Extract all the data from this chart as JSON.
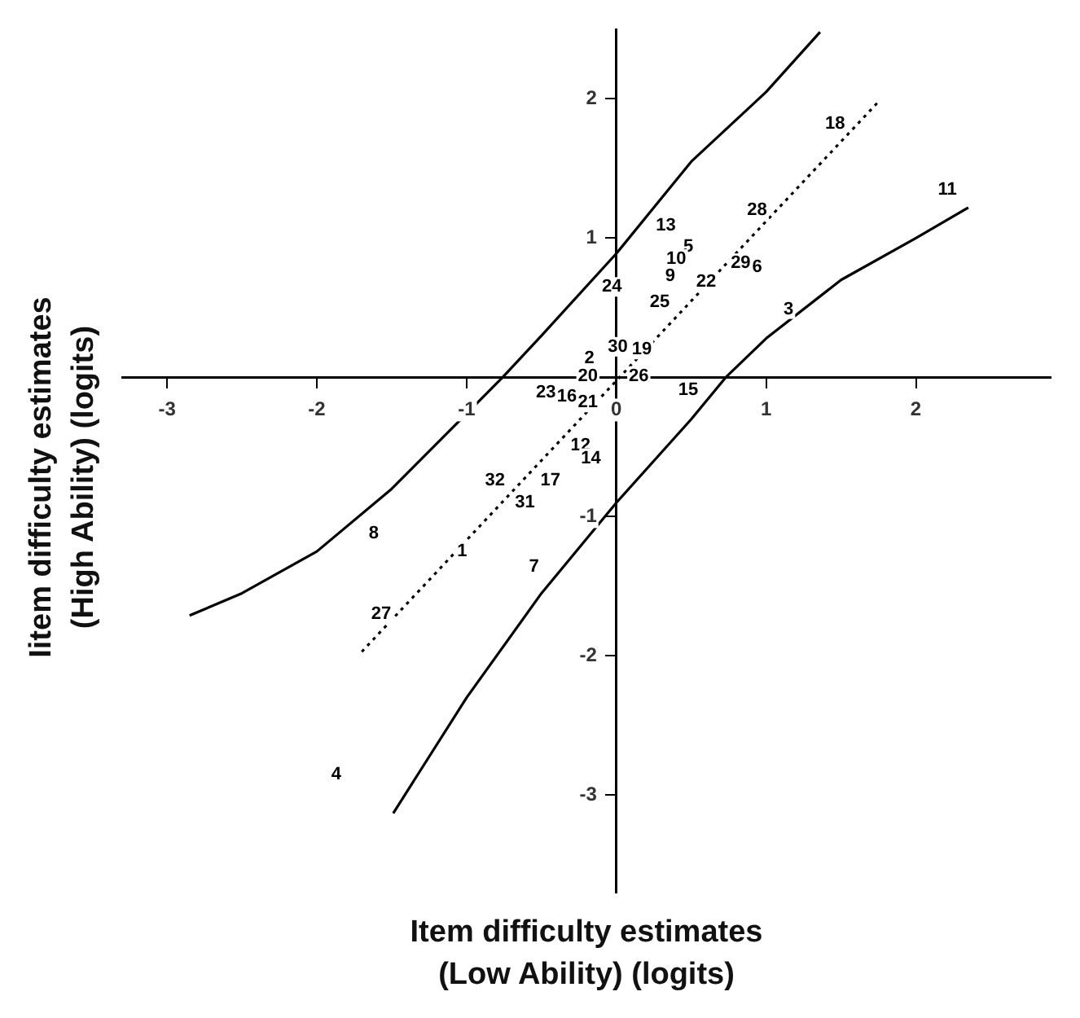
{
  "chart_data": {
    "type": "scatter",
    "xlabel": "Item difficulty estimates\n(Low Ability) (logits)",
    "ylabel": "Iitem difficulty estimates\n(High Ability) (logits)",
    "xlim": [
      -3.3,
      2.9
    ],
    "ylim": [
      -3.7,
      2.5
    ],
    "xticks": [
      -3,
      -2,
      -1,
      0,
      1,
      2
    ],
    "yticks": [
      -3,
      -2,
      -1,
      {
        "value": 0,
        "label": null
      },
      1,
      2
    ],
    "series": [
      {
        "type": "line",
        "marker": "none",
        "line_style": "dotted",
        "color": "#000000",
        "x": [
          -1.7,
          1.75
        ],
        "values": [
          -1.97,
          1.98
        ]
      },
      {
        "type": "line",
        "marker": "none",
        "line_style": "solid",
        "color": "#000000",
        "x": [
          -2.85,
          -2.5,
          -2,
          -1.5,
          -1,
          -0.76,
          -0.5,
          0,
          0.5,
          1,
          1.36
        ],
        "values": [
          -1.71,
          -1.55,
          -1.25,
          -0.8,
          -0.26,
          0,
          0.3,
          0.89,
          1.55,
          2.05,
          2.48
        ]
      },
      {
        "type": "line",
        "marker": "none",
        "line_style": "solid",
        "color": "#000000",
        "x": [
          -1.49,
          -1,
          -0.5,
          0,
          0.5,
          0.73,
          1,
          1.5,
          2,
          2.35
        ],
        "values": [
          -3.13,
          -2.3,
          -1.55,
          -0.9,
          -0.3,
          0,
          0.28,
          0.7,
          1.0,
          1.22
        ]
      }
    ],
    "annotations": [
      {
        "text": "18",
        "x": 1.46,
        "y": 1.82
      },
      {
        "text": "11",
        "x": 2.21,
        "y": 1.35
      },
      {
        "text": "28",
        "x": 0.94,
        "y": 1.2
      },
      {
        "text": "13",
        "x": 0.33,
        "y": 1.09
      },
      {
        "text": "5",
        "x": 0.48,
        "y": 0.94
      },
      {
        "text": "10",
        "x": 0.4,
        "y": 0.85
      },
      {
        "text": "9",
        "x": 0.36,
        "y": 0.73
      },
      {
        "text": "29",
        "x": 0.83,
        "y": 0.82
      },
      {
        "text": "6",
        "x": 0.94,
        "y": 0.79
      },
      {
        "text": "22",
        "x": 0.6,
        "y": 0.69
      },
      {
        "text": "24",
        "x": -0.03,
        "y": 0.65
      },
      {
        "text": "25",
        "x": 0.29,
        "y": 0.54
      },
      {
        "text": "3",
        "x": 1.15,
        "y": 0.49
      },
      {
        "text": "30",
        "x": 0.01,
        "y": 0.22
      },
      {
        "text": "19",
        "x": 0.17,
        "y": 0.2
      },
      {
        "text": "2",
        "x": -0.18,
        "y": 0.14
      },
      {
        "text": "20",
        "x": -0.19,
        "y": 0.01
      },
      {
        "text": "26",
        "x": 0.15,
        "y": 0.01
      },
      {
        "text": "15",
        "x": 0.48,
        "y": -0.09
      },
      {
        "text": "23",
        "x": -0.47,
        "y": -0.11
      },
      {
        "text": "16",
        "x": -0.33,
        "y": -0.14
      },
      {
        "text": "21",
        "x": -0.19,
        "y": -0.18
      },
      {
        "text": "12",
        "x": -0.24,
        "y": -0.49
      },
      {
        "text": "14",
        "x": -0.17,
        "y": -0.58
      },
      {
        "text": "17",
        "x": -0.44,
        "y": -0.74
      },
      {
        "text": "32",
        "x": -0.81,
        "y": -0.74
      },
      {
        "text": "31",
        "x": -0.61,
        "y": -0.9
      },
      {
        "text": "8",
        "x": -1.62,
        "y": -1.12
      },
      {
        "text": "1",
        "x": -1.03,
        "y": -1.25
      },
      {
        "text": "7",
        "x": -0.55,
        "y": -1.36
      },
      {
        "text": "27",
        "x": -1.57,
        "y": -1.7
      },
      {
        "text": "4",
        "x": -1.87,
        "y": -2.85
      }
    ]
  }
}
